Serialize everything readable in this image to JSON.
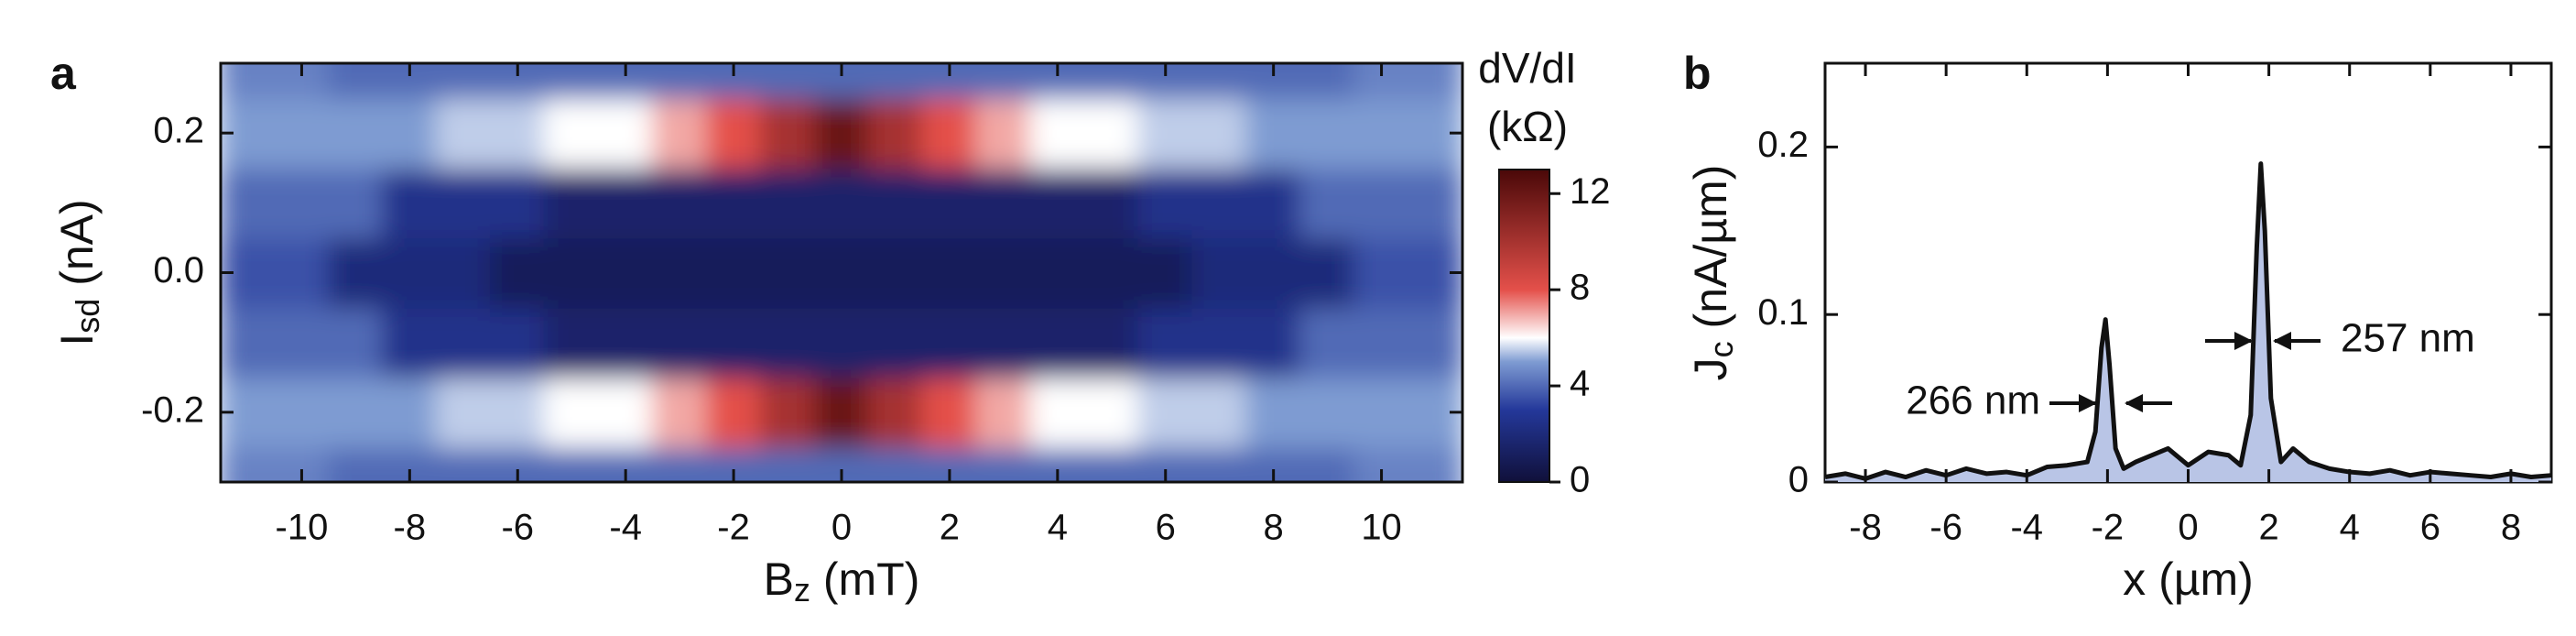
{
  "chart_data": [
    {
      "type": "heatmap",
      "panel_label": "a",
      "x_label": [
        "B",
        "z",
        " (mT)"
      ],
      "y_label": [
        "I",
        "sd",
        " (nA)"
      ],
      "x": [
        -11,
        -10,
        -9,
        -8,
        -7,
        -6,
        -5,
        -4,
        -3,
        -2,
        -1,
        0,
        1,
        2,
        3,
        4,
        5,
        6,
        7,
        8,
        9,
        10,
        11
      ],
      "y": [
        -0.3,
        -0.2,
        -0.1,
        0,
        0.1,
        0.2,
        0.3
      ],
      "z": [
        [
          4.5,
          4.5,
          4,
          4,
          4,
          4,
          4,
          4,
          4,
          4,
          4,
          4,
          4,
          4,
          4,
          4,
          4,
          4,
          4,
          4,
          4,
          4.5,
          4.5
        ],
        [
          5,
          5,
          5,
          5,
          5.5,
          5.5,
          6,
          6,
          7,
          8,
          10,
          12,
          10,
          8,
          7,
          6,
          6,
          5.5,
          5.5,
          5,
          5,
          5,
          5
        ],
        [
          4,
          4,
          4,
          2.5,
          2.5,
          2.5,
          1.5,
          1.5,
          1.5,
          1.5,
          1.5,
          1.5,
          1.5,
          1.5,
          1.5,
          1.5,
          1.5,
          2.5,
          2.5,
          2.5,
          4,
          4,
          4
        ],
        [
          3.5,
          3.5,
          2,
          2,
          2,
          1,
          1,
          1,
          1,
          1,
          1,
          1,
          1,
          1,
          1,
          1,
          1,
          1,
          2,
          2,
          2,
          3.5,
          3.5
        ],
        [
          4,
          4,
          4,
          2.5,
          2.5,
          2.5,
          1.5,
          1.5,
          1.5,
          1.5,
          1.5,
          1.5,
          1.5,
          1.5,
          1.5,
          1.5,
          1.5,
          2.5,
          2.5,
          2.5,
          4,
          4,
          4
        ],
        [
          5,
          5,
          5,
          5,
          5.5,
          5.5,
          6,
          6,
          7,
          8,
          10,
          12,
          10,
          8,
          7,
          6,
          6,
          5.5,
          5.5,
          5,
          5,
          5,
          5
        ],
        [
          4.5,
          4.5,
          4,
          4,
          4,
          4,
          4,
          4,
          4,
          4,
          4,
          4,
          4,
          4,
          4,
          4,
          4,
          4,
          4,
          4,
          4,
          4.5,
          4.5
        ]
      ],
      "xlim": [
        -11.5,
        11.5
      ],
      "ylim": [
        -0.3,
        0.3
      ],
      "xticks": [
        -10,
        -8,
        -6,
        -4,
        -2,
        0,
        2,
        4,
        6,
        8,
        10
      ],
      "yticks": [
        -0.2,
        {
          "value": 0,
          "label": "0.0"
        },
        0.2
      ],
      "colormap": [
        [
          0,
          "#10103a"
        ],
        [
          3,
          "#24389a"
        ],
        [
          5,
          "#7e9bd2"
        ],
        [
          6,
          "#ffffff"
        ],
        [
          8,
          "#e4504a"
        ],
        [
          13,
          "#4a0808"
        ]
      ],
      "colorbar": {
        "title": [
          "dV/dI",
          "(kΩ)"
        ],
        "lim": [
          0,
          13
        ],
        "ticks": [
          0,
          4,
          8,
          12
        ]
      }
    },
    {
      "type": "line",
      "panel_label": "b",
      "x_label": [
        "x (µm)"
      ],
      "y_label": [
        "J",
        "c",
        " (nA/µm)"
      ],
      "x": [
        -9,
        -8.5,
        -8,
        -7.5,
        -7,
        -6.5,
        -6,
        -5.5,
        -5,
        -4.5,
        -4,
        -3.5,
        -3,
        -2.5,
        -2.3,
        -2.15,
        -2.05,
        -1.95,
        -1.8,
        -1.6,
        -1.3,
        -1,
        -0.5,
        0,
        0.5,
        1,
        1.3,
        1.55,
        1.7,
        1.8,
        1.9,
        2.05,
        2.3,
        2.6,
        3,
        3.5,
        4,
        4.5,
        5,
        5.5,
        6,
        6.5,
        7,
        7.5,
        8,
        8.5,
        9
      ],
      "values": [
        0.003,
        0.005,
        0.002,
        0.006,
        0.003,
        0.007,
        0.004,
        0.008,
        0.005,
        0.006,
        0.004,
        0.009,
        0.01,
        0.012,
        0.03,
        0.08,
        0.097,
        0.07,
        0.02,
        0.008,
        0.012,
        0.015,
        0.02,
        0.01,
        0.018,
        0.016,
        0.01,
        0.04,
        0.14,
        0.19,
        0.15,
        0.05,
        0.012,
        0.02,
        0.012,
        0.008,
        0.006,
        0.005,
        0.007,
        0.004,
        0.006,
        0.005,
        0.004,
        0.003,
        0.005,
        0.003,
        0.004
      ],
      "color": "#111111",
      "fill": "#b9c5e6",
      "xlim": [
        -9,
        9
      ],
      "ylim": [
        0,
        0.25
      ],
      "xticks": [
        -8,
        -6,
        -4,
        -2,
        0,
        2,
        4,
        6,
        8
      ],
      "yticks": [
        0,
        0.1,
        0.2
      ],
      "annotations": [
        "266 nm",
        "257 nm"
      ]
    }
  ]
}
